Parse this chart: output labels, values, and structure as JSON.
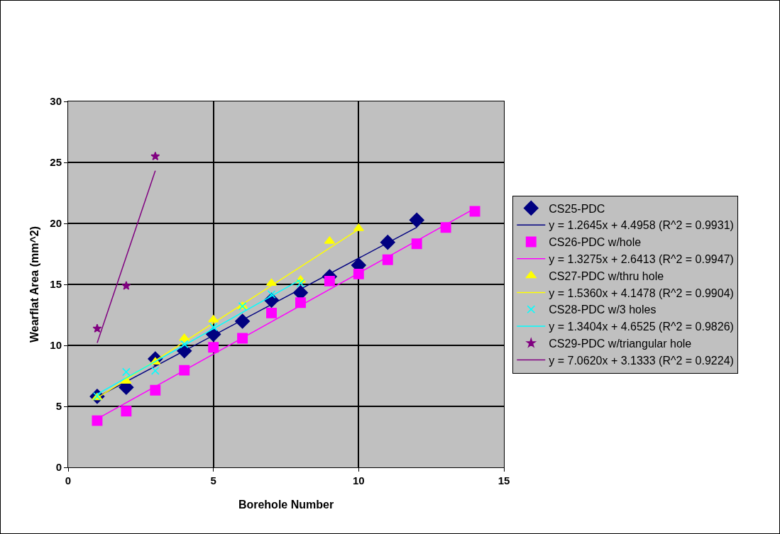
{
  "chart_data": {
    "type": "scatter",
    "xlabel": "Borehole Number",
    "ylabel": "Wearflat Area (mm^2)",
    "xlim": [
      0,
      15
    ],
    "xticks": [
      0,
      5,
      10,
      15
    ],
    "ylim": [
      0,
      30
    ],
    "yticks": [
      0,
      5,
      10,
      15,
      20,
      25,
      30
    ],
    "grid": true,
    "legend": "right",
    "series": [
      {
        "name": "CS25-PDC",
        "color": "#000080",
        "marker": "diamond",
        "x": [
          1,
          2,
          3,
          4,
          5,
          6,
          7,
          8,
          9,
          10,
          11,
          12
        ],
        "values": [
          5.82,
          6.56,
          8.89,
          9.55,
          10.91,
          11.98,
          13.7,
          14.32,
          15.64,
          16.57,
          18.45,
          20.27
        ]
      },
      {
        "name": "y = 1.2645x + 4.4958 (R^2 = 0.9931)",
        "type": "line",
        "color": "#000080",
        "marker": "none",
        "x": [
          1,
          12
        ],
        "values": [
          5.76,
          19.67
        ]
      },
      {
        "name": "CS26-PDC w/hole",
        "color": "#ff00ff",
        "marker": "square",
        "x": [
          1,
          2,
          3,
          4,
          5,
          6,
          7,
          8,
          9,
          10,
          11,
          12,
          13,
          14
        ],
        "values": [
          3.83,
          4.61,
          6.32,
          7.96,
          9.84,
          10.58,
          12.65,
          13.5,
          15.27,
          15.85,
          17.02,
          18.33,
          19.67,
          20.99
        ]
      },
      {
        "name": "y = 1.3275x + 2.6413 (R^2 = 0.9947)",
        "type": "line",
        "color": "#ff00ff",
        "marker": "none",
        "x": [
          1,
          14
        ],
        "values": [
          3.97,
          21.23
        ]
      },
      {
        "name": "CS27-PDC w/thru hole",
        "color": "#ffff00",
        "marker": "triangle",
        "x": [
          1,
          2,
          3,
          4,
          5,
          6,
          7,
          8,
          9,
          10
        ],
        "values": [
          5.72,
          7.08,
          8.64,
          10.58,
          12.1,
          13.2,
          15.1,
          15.35,
          18.55,
          19.59
        ]
      },
      {
        "name": "y = 1.5360x + 4.1478 (R^2 = 0.9904)",
        "type": "line",
        "color": "#ffff00",
        "marker": "none",
        "x": [
          1,
          10
        ],
        "values": [
          5.68,
          19.51
        ]
      },
      {
        "name": "CS28-PDC w/3 holes",
        "color": "#00ffff",
        "marker": "cross",
        "x": [
          1,
          2,
          3,
          4,
          5,
          6,
          7,
          8
        ],
        "values": [
          5.82,
          7.82,
          7.92,
          10.1,
          11.5,
          13.2,
          14.18,
          15.1
        ]
      },
      {
        "name": "y = 1.3404x + 4.6525 (R^2 = 0.9826)",
        "type": "line",
        "color": "#00ffff",
        "marker": "none",
        "x": [
          1,
          8
        ],
        "values": [
          5.99,
          15.38
        ]
      },
      {
        "name": "CS29-PDC w/triangular hole",
        "color": "#800080",
        "marker": "star",
        "x": [
          1,
          2,
          3
        ],
        "values": [
          11.38,
          14.88,
          25.5
        ]
      },
      {
        "name": "y = 7.0620x + 3.1333 (R^2 = 0.9224)",
        "type": "line",
        "color": "#800080",
        "marker": "none",
        "x": [
          1,
          3
        ],
        "values": [
          10.2,
          24.32
        ]
      }
    ]
  }
}
